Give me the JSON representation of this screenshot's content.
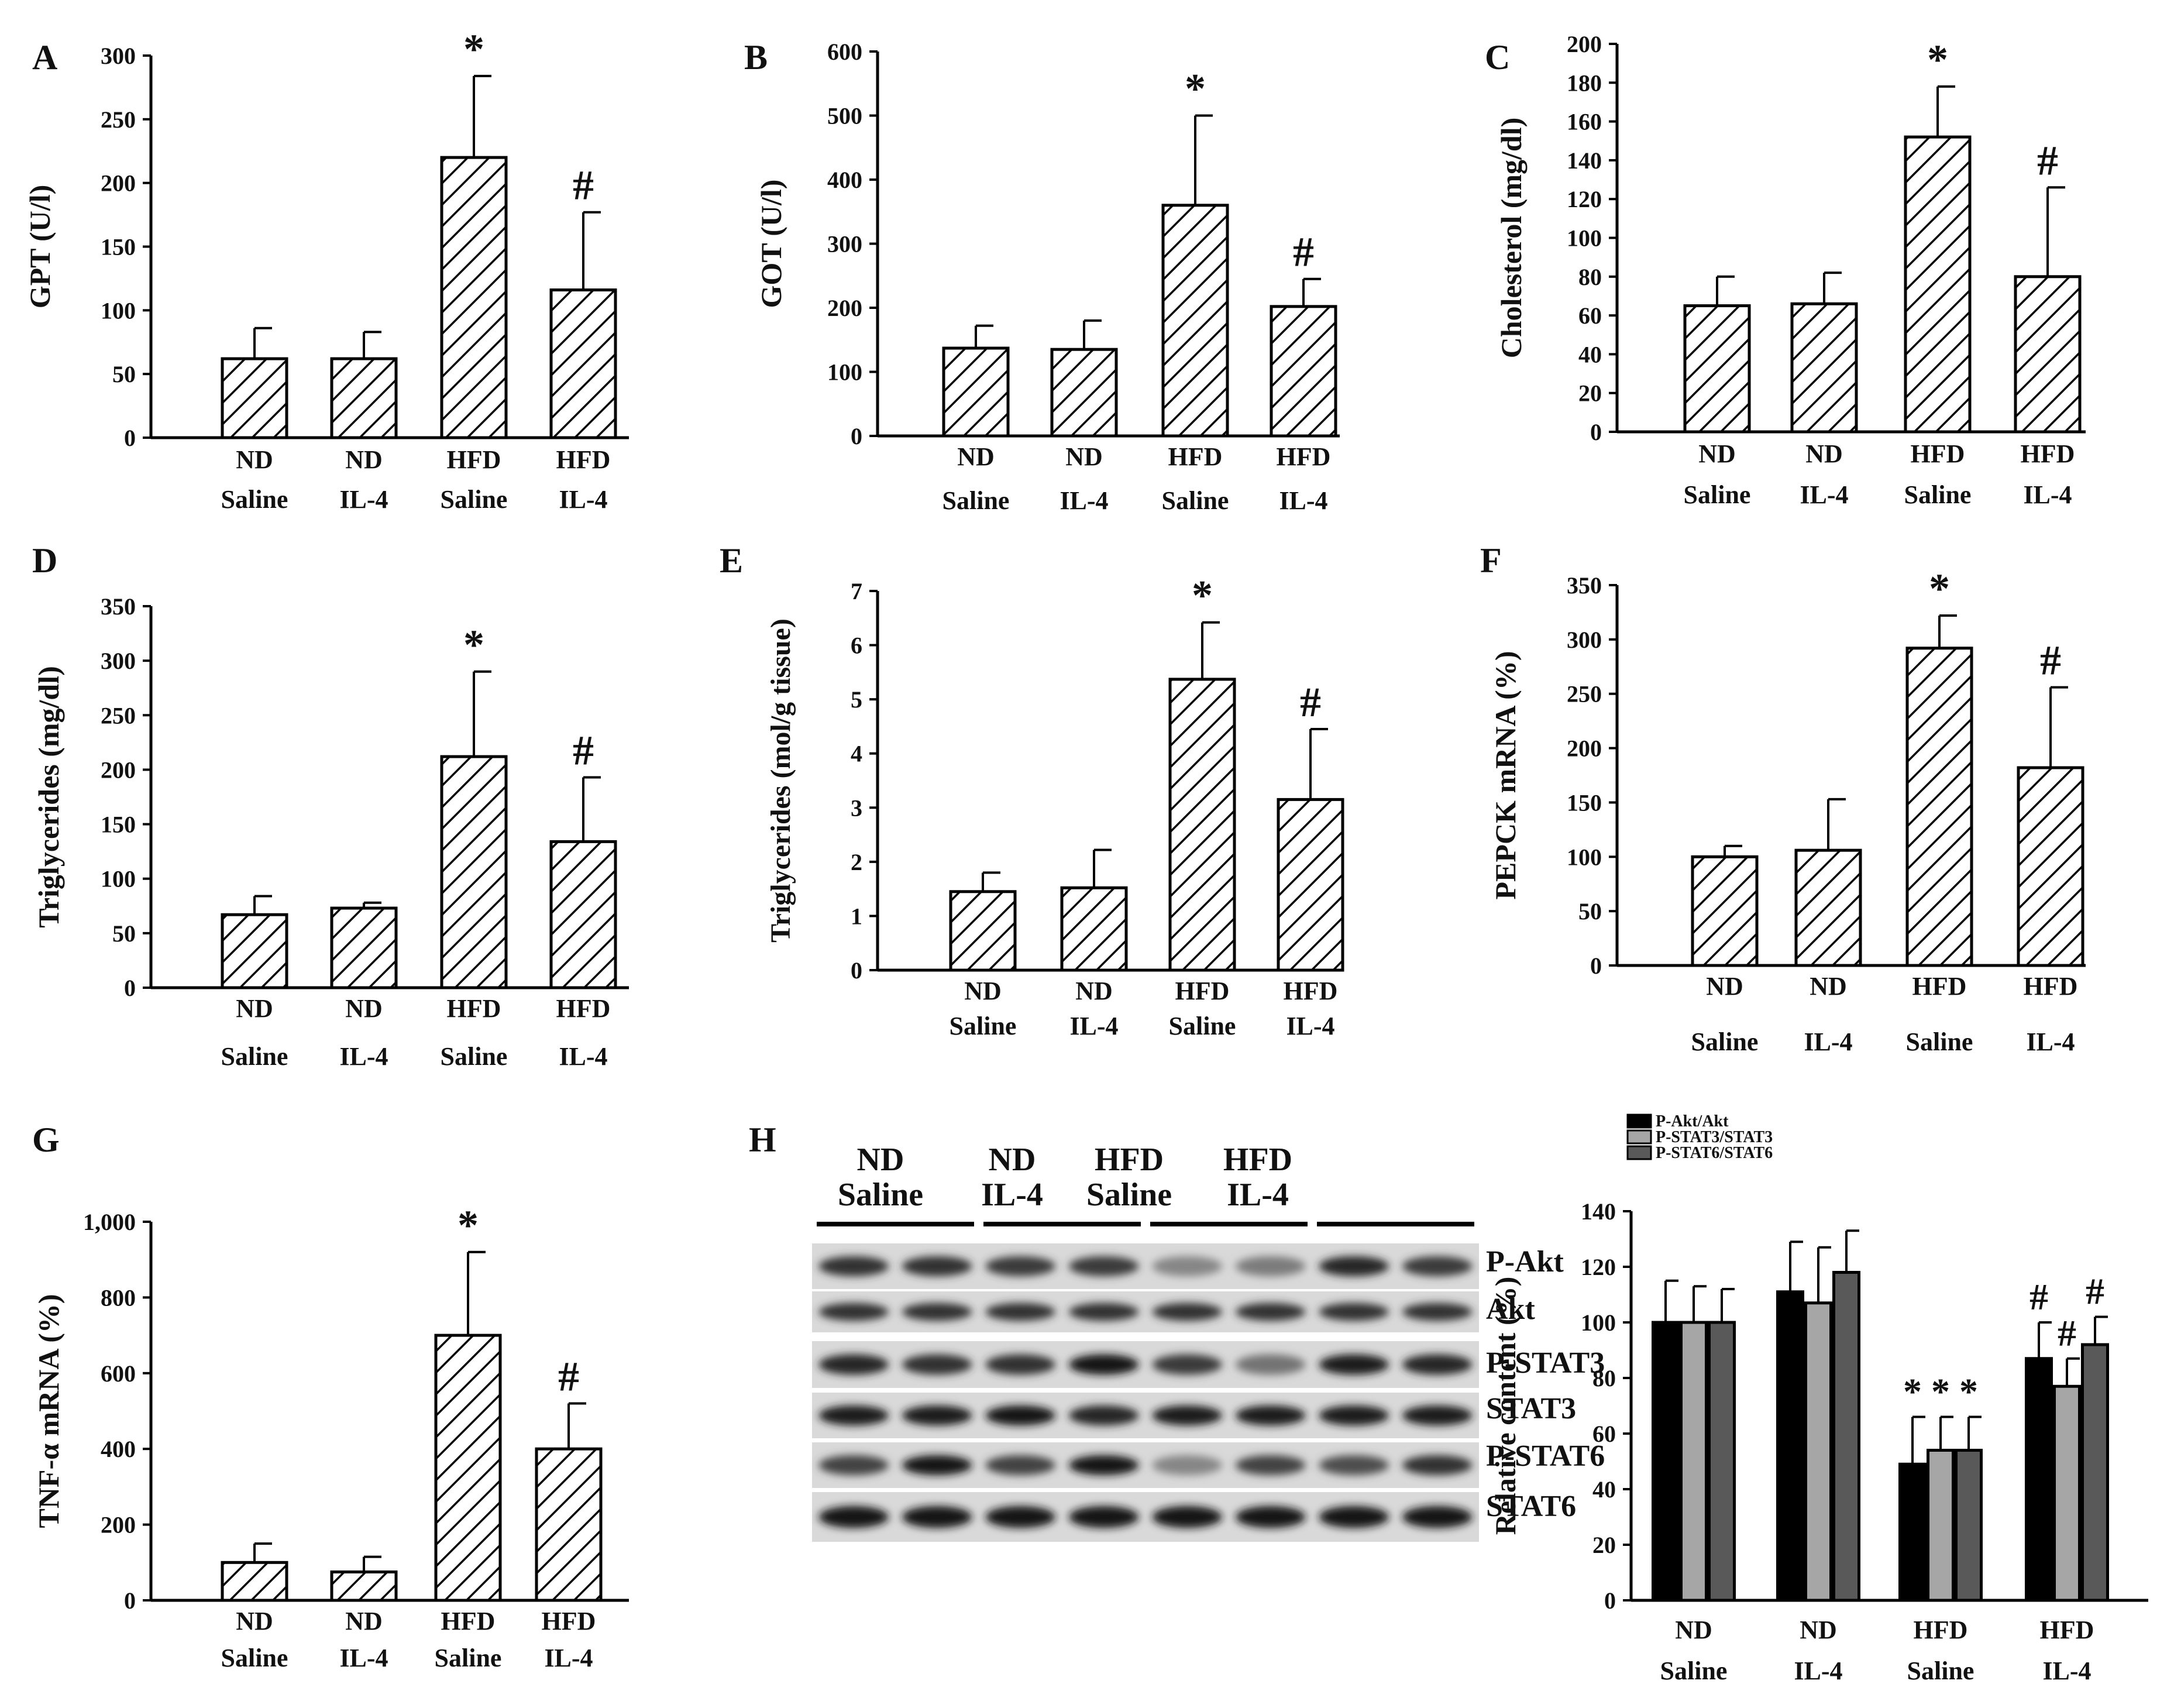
{
  "figure": {
    "hatch_color": "#000000",
    "bar_fill": "#ffffff",
    "series_colors": [
      "#000000",
      "#a6a6a6",
      "#595959"
    ]
  },
  "chart_data": [
    {
      "panel": "A",
      "type": "bar",
      "ylabel": "GPT (U/l)",
      "ylim": [
        0,
        300
      ],
      "ticks": [
        0,
        50,
        100,
        150,
        200,
        250,
        300
      ],
      "tick_labels": [
        "0",
        "50",
        "100",
        "150",
        "200",
        "250",
        "300"
      ],
      "categories": [
        [
          "ND",
          "Saline"
        ],
        [
          "ND",
          "IL-4"
        ],
        [
          "HFD",
          "Saline"
        ],
        [
          "HFD",
          "IL-4"
        ]
      ],
      "values": [
        62,
        62,
        220,
        116
      ],
      "errors": [
        24,
        21,
        64,
        61
      ],
      "annotations": [
        "",
        "",
        "*",
        "#"
      ]
    },
    {
      "panel": "B",
      "type": "bar",
      "ylabel": "GOT (U/l)",
      "ylim": [
        0,
        600
      ],
      "ticks": [
        0,
        100,
        200,
        300,
        400,
        500,
        600
      ],
      "tick_labels": [
        "0",
        "100",
        "200",
        "300",
        "400",
        "500",
        "600"
      ],
      "categories": [
        [
          "ND",
          "Saline"
        ],
        [
          "ND",
          "IL-4"
        ],
        [
          "HFD",
          "Saline"
        ],
        [
          "HFD",
          "IL-4"
        ]
      ],
      "values": [
        137,
        135,
        360,
        202
      ],
      "errors": [
        35,
        45,
        140,
        43
      ],
      "annotations": [
        "",
        "",
        "*",
        "#"
      ]
    },
    {
      "panel": "C",
      "type": "bar",
      "ylabel": "Cholesterol (mg/dl)",
      "ylim": [
        0,
        200
      ],
      "ticks": [
        0,
        20,
        40,
        60,
        80,
        100,
        120,
        140,
        160,
        180,
        200
      ],
      "tick_labels": [
        "0",
        "20",
        "40",
        "60",
        "80",
        "100",
        "120",
        "140",
        "160",
        "180",
        "200"
      ],
      "categories": [
        [
          "ND",
          "Saline"
        ],
        [
          "ND",
          "IL-4"
        ],
        [
          "HFD",
          "Saline"
        ],
        [
          "HFD",
          "IL-4"
        ]
      ],
      "values": [
        65,
        66,
        152,
        80
      ],
      "errors": [
        15,
        16,
        26,
        46
      ],
      "annotations": [
        "",
        "",
        "*",
        "#"
      ]
    },
    {
      "panel": "D",
      "type": "bar",
      "ylabel": "Triglycerides (mg/dl)",
      "ylim": [
        0,
        350
      ],
      "ticks": [
        0,
        50,
        100,
        150,
        200,
        250,
        300,
        350
      ],
      "tick_labels": [
        "0",
        "50",
        "100",
        "150",
        "200",
        "250",
        "300",
        "350"
      ],
      "categories": [
        [
          "ND",
          "Saline"
        ],
        [
          "ND",
          "IL-4"
        ],
        [
          "HFD",
          "Saline"
        ],
        [
          "HFD",
          "IL-4"
        ]
      ],
      "values": [
        67,
        73,
        212,
        134
      ],
      "errors": [
        17,
        5,
        78,
        59
      ],
      "annotations": [
        "",
        "",
        "*",
        "#"
      ]
    },
    {
      "panel": "E",
      "type": "bar",
      "ylabel": "Triglycerides (mol/g tissue)",
      "ylim": [
        0,
        7
      ],
      "ticks": [
        0,
        1,
        2,
        3,
        4,
        5,
        6,
        7
      ],
      "tick_labels": [
        "0",
        "1",
        "2",
        "3",
        "4",
        "5",
        "6",
        "7"
      ],
      "categories": [
        [
          "ND",
          "Saline"
        ],
        [
          "ND",
          "IL-4"
        ],
        [
          "HFD",
          "Saline"
        ],
        [
          "HFD",
          "IL-4"
        ]
      ],
      "values": [
        1.45,
        1.52,
        5.37,
        3.15
      ],
      "errors": [
        0.35,
        0.7,
        1.05,
        1.3
      ],
      "annotations": [
        "",
        "",
        "*",
        "#"
      ]
    },
    {
      "panel": "F",
      "type": "bar",
      "ylabel": "PEPCK mRNA (%)",
      "ylim": [
        0,
        350
      ],
      "ticks": [
        0,
        50,
        100,
        150,
        200,
        250,
        300,
        350
      ],
      "tick_labels": [
        "0",
        "50",
        "100",
        "150",
        "200",
        "250",
        "300",
        "350"
      ],
      "categories": [
        [
          "ND",
          "Saline"
        ],
        [
          "ND",
          "IL-4"
        ],
        [
          "HFD",
          "Saline"
        ],
        [
          "HFD",
          "IL-4"
        ]
      ],
      "values": [
        100,
        106,
        292,
        182
      ],
      "errors": [
        10,
        47,
        30,
        74
      ],
      "annotations": [
        "",
        "",
        "*",
        "#"
      ]
    },
    {
      "panel": "G",
      "type": "bar",
      "ylabel": "TNF-α mRNA (%)",
      "ylim": [
        0,
        1000
      ],
      "ticks": [
        0,
        200,
        400,
        600,
        800,
        1000
      ],
      "tick_labels": [
        "0",
        "200",
        "400",
        "600",
        "800",
        "1,000"
      ],
      "categories": [
        [
          "ND",
          "Saline"
        ],
        [
          "ND",
          "IL-4"
        ],
        [
          "HFD",
          "Saline"
        ],
        [
          "HFD",
          "IL-4"
        ]
      ],
      "values": [
        100,
        75,
        700,
        400
      ],
      "errors": [
        50,
        40,
        220,
        120
      ],
      "annotations": [
        "",
        "",
        "*",
        "#"
      ]
    },
    {
      "panel": "H",
      "type": "bar",
      "ylabel": "Relative content (%)",
      "ylim": [
        0,
        140
      ],
      "ticks": [
        0,
        20,
        40,
        60,
        80,
        100,
        120,
        140
      ],
      "tick_labels": [
        "0",
        "20",
        "40",
        "60",
        "80",
        "100",
        "120",
        "140"
      ],
      "categories": [
        [
          "ND",
          "Saline"
        ],
        [
          "ND",
          "IL-4"
        ],
        [
          "HFD",
          "Saline"
        ],
        [
          "HFD",
          "IL-4"
        ]
      ],
      "legend_position": "top-left",
      "series": [
        {
          "name": "P-Akt/Akt",
          "values": [
            100,
            111,
            49,
            87
          ],
          "errors": [
            15,
            18,
            17,
            13
          ],
          "annotations": [
            "",
            "",
            "*",
            "#"
          ]
        },
        {
          "name": "P-STAT3/STAT3",
          "values": [
            100,
            107,
            54,
            77
          ],
          "errors": [
            13,
            20,
            12,
            10
          ],
          "annotations": [
            "",
            "",
            "*",
            "#"
          ]
        },
        {
          "name": "P-STAT6/STAT6",
          "values": [
            100,
            118,
            54,
            92
          ],
          "errors": [
            12,
            15,
            12,
            10
          ],
          "annotations": [
            "",
            "",
            "*",
            "#"
          ]
        }
      ]
    }
  ],
  "blot": {
    "group_labels": [
      [
        "ND",
        "Saline"
      ],
      [
        "ND",
        "IL-4"
      ],
      [
        "HFD",
        "Saline"
      ],
      [
        "HFD",
        "IL-4"
      ]
    ],
    "rows": [
      {
        "label": "P-Akt",
        "intensity": [
          0.8,
          0.8,
          0.75,
          0.75,
          0.35,
          0.4,
          0.85,
          0.75
        ]
      },
      {
        "label": "Akt",
        "intensity": [
          0.8,
          0.8,
          0.8,
          0.8,
          0.8,
          0.8,
          0.8,
          0.8
        ]
      },
      {
        "label": "P-STAT3",
        "intensity": [
          0.85,
          0.8,
          0.8,
          0.95,
          0.75,
          0.45,
          0.9,
          0.85
        ]
      },
      {
        "label": "STAT3",
        "intensity": [
          0.9,
          0.9,
          0.95,
          0.85,
          0.9,
          0.9,
          0.9,
          0.9
        ]
      },
      {
        "label": "P-STAT6",
        "intensity": [
          0.7,
          0.95,
          0.7,
          0.95,
          0.35,
          0.7,
          0.65,
          0.8
        ]
      },
      {
        "label": "STAT6",
        "intensity": [
          0.95,
          0.95,
          0.95,
          0.95,
          0.95,
          0.95,
          0.95,
          0.95
        ]
      }
    ]
  }
}
